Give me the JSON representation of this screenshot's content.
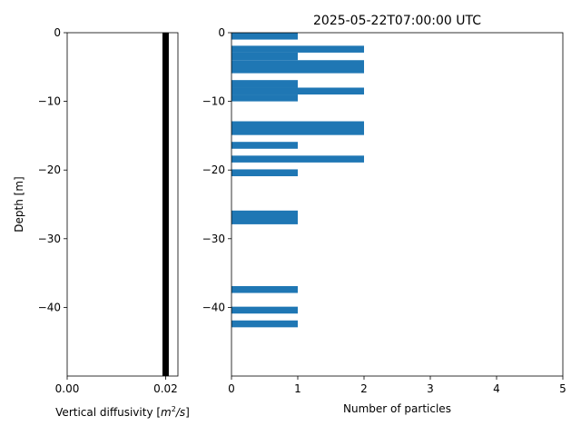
{
  "chart_data": [
    {
      "type": "line",
      "title": "",
      "xlabel": "Vertical diffusivity [$m^2/s$]",
      "xlabel_main": "Vertical diffusivity [",
      "xlabel_unit_base": "m",
      "xlabel_unit_exp": "2",
      "xlabel_unit_tail": "/s",
      "xlabel_close": "]",
      "ylabel": "Depth [m]",
      "xlim": [
        0,
        0.0225
      ],
      "ylim": [
        -50,
        0
      ],
      "xticks": [
        {
          "value": 0,
          "label": "0.00"
        },
        {
          "value": 0.02,
          "label": "0.02"
        }
      ],
      "yticks": [
        {
          "value": 0,
          "label": "0"
        },
        {
          "value": -10,
          "label": "−10"
        },
        {
          "value": -20,
          "label": "−20"
        },
        {
          "value": -30,
          "label": "−30"
        },
        {
          "value": -40,
          "label": "−40"
        }
      ],
      "series": [
        {
          "x": [
            0.02,
            0.02
          ],
          "y": [
            0,
            -50
          ],
          "color": "#000000"
        }
      ]
    },
    {
      "type": "bar",
      "orientation": "horizontal",
      "title": "2025-05-22T07:00:00 UTC",
      "xlabel": "Number of particles",
      "ylabel": "",
      "xlim": [
        0,
        5
      ],
      "ylim": [
        -50,
        0
      ],
      "xticks": [
        {
          "value": 0,
          "label": "0"
        },
        {
          "value": 1,
          "label": "1"
        },
        {
          "value": 2,
          "label": "2"
        },
        {
          "value": 3,
          "label": "3"
        },
        {
          "value": 4,
          "label": "4"
        },
        {
          "value": 5,
          "label": "5"
        }
      ],
      "yticks": [
        {
          "value": 0,
          "label": "0"
        },
        {
          "value": -10,
          "label": "−10"
        },
        {
          "value": -20,
          "label": "−20"
        },
        {
          "value": -30,
          "label": "−30"
        },
        {
          "value": -40,
          "label": "−40"
        }
      ],
      "bar_color": "#1f77b4",
      "bins": [
        {
          "top": 0.0,
          "bottom": -1.0,
          "count": 1
        },
        {
          "top": -1.9,
          "bottom": -2.9,
          "count": 2
        },
        {
          "top": -2.9,
          "bottom": -4.0,
          "count": 1
        },
        {
          "top": -4.0,
          "bottom": -5.9,
          "count": 2
        },
        {
          "top": -6.9,
          "bottom": -8.0,
          "count": 1
        },
        {
          "top": -8.0,
          "bottom": -9.0,
          "count": 2
        },
        {
          "top": -9.0,
          "bottom": -10.0,
          "count": 1
        },
        {
          "top": -12.9,
          "bottom": -14.9,
          "count": 2
        },
        {
          "top": -15.9,
          "bottom": -16.9,
          "count": 1
        },
        {
          "top": -17.9,
          "bottom": -18.9,
          "count": 2
        },
        {
          "top": -19.9,
          "bottom": -20.9,
          "count": 1
        },
        {
          "top": -25.9,
          "bottom": -27.9,
          "count": 1
        },
        {
          "top": -36.9,
          "bottom": -37.9,
          "count": 1
        },
        {
          "top": -39.9,
          "bottom": -40.9,
          "count": 1
        },
        {
          "top": -41.9,
          "bottom": -42.9,
          "count": 1
        }
      ]
    }
  ]
}
